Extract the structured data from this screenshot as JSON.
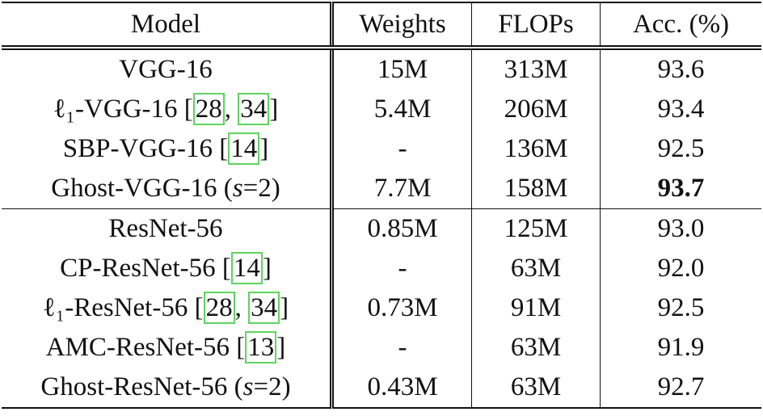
{
  "table": {
    "header": [
      "Model",
      "Weights",
      "FLOPs",
      "Acc. (%)"
    ],
    "groups": [
      {
        "rows": [
          {
            "model": [
              {
                "text": "VGG-16"
              }
            ],
            "weights": "15M",
            "flops": "313M",
            "acc": "93.6"
          },
          {
            "model": [
              {
                "text": "ℓ₁-VGG-16 ["
              },
              {
                "cite": "28"
              },
              {
                "text": ", "
              },
              {
                "cite": "34"
              },
              {
                "text": "]"
              }
            ],
            "weights": "5.4M",
            "flops": "206M",
            "acc": "93.4"
          },
          {
            "model": [
              {
                "text": "SBP-VGG-16 ["
              },
              {
                "cite": "14"
              },
              {
                "text": "]"
              }
            ],
            "weights": "-",
            "flops": "136M",
            "acc": "92.5"
          },
          {
            "model": [
              {
                "text": "Ghost-VGG-16 ("
              },
              {
                "italic": "s"
              },
              {
                "text": "=2)"
              }
            ],
            "weights": "7.7M",
            "flops": "158M",
            "acc": "93.7",
            "bold_acc": true
          }
        ]
      },
      {
        "rows": [
          {
            "model": [
              {
                "text": "ResNet-56"
              }
            ],
            "weights": "0.85M",
            "flops": "125M",
            "acc": "93.0"
          },
          {
            "model": [
              {
                "text": "CP-ResNet-56 ["
              },
              {
                "cite": "14"
              },
              {
                "text": "]"
              }
            ],
            "weights": "-",
            "flops": "63M",
            "acc": "92.0"
          },
          {
            "model": [
              {
                "text": "ℓ₁-ResNet-56 ["
              },
              {
                "cite": "28"
              },
              {
                "text": ", "
              },
              {
                "cite": "34"
              },
              {
                "text": "]"
              }
            ],
            "weights": "0.73M",
            "flops": "91M",
            "acc": "92.5"
          },
          {
            "model": [
              {
                "text": "AMC-ResNet-56 ["
              },
              {
                "cite": "13"
              },
              {
                "text": "]"
              }
            ],
            "weights": "-",
            "flops": "63M",
            "acc": "91.9"
          },
          {
            "model": [
              {
                "text": "Ghost-ResNet-56 ("
              },
              {
                "italic": "s"
              },
              {
                "text": "=2)"
              }
            ],
            "weights": "0.43M",
            "flops": "63M",
            "acc": "92.7"
          }
        ]
      }
    ]
  }
}
